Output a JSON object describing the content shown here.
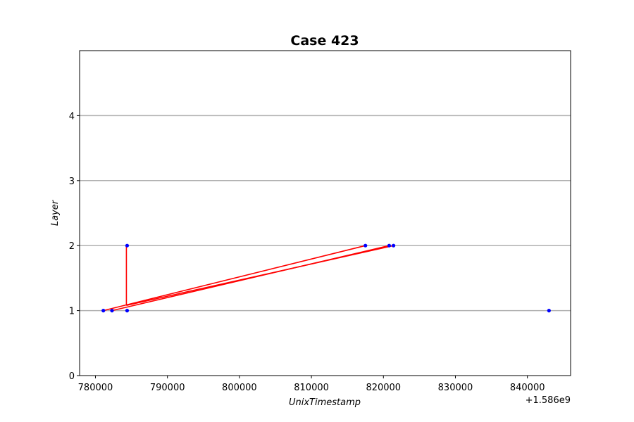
{
  "chart_data": {
    "type": "scatter",
    "title": "Case 423",
    "xlabel": "UnixTimestamp",
    "ylabel": "Layer",
    "x_offset_label": "+1.586e9",
    "xlim": [
      777800,
      846000
    ],
    "ylim": [
      0,
      5
    ],
    "x_ticks": [
      780000,
      790000,
      800000,
      810000,
      820000,
      830000,
      840000
    ],
    "x_tick_labels": [
      "780000",
      "790000",
      "800000",
      "810000",
      "820000",
      "830000",
      "840000"
    ],
    "y_ticks": [
      0,
      1,
      2,
      3,
      4
    ],
    "y_tick_labels": [
      "0",
      "1",
      "2",
      "3",
      "4"
    ],
    "y_grid": [
      1,
      2,
      3,
      4
    ],
    "grid": "y-major",
    "points": {
      "color": "#0000ff",
      "x": [
        781100,
        782300,
        784400,
        784400,
        817500,
        820800,
        821400,
        843000
      ],
      "y": [
        1,
        1,
        1,
        2,
        2,
        2,
        2,
        1
      ]
    },
    "segments": {
      "color": "#ff0000",
      "lines": [
        {
          "x": [
            781100,
            817500
          ],
          "y": [
            1,
            2
          ]
        },
        {
          "x": [
            782300,
            820800
          ],
          "y": [
            1,
            2
          ]
        },
        {
          "x": [
            784300,
            784300
          ],
          "y": [
            1.08,
            2
          ]
        },
        {
          "x": [
            784300,
            821400
          ],
          "y": [
            1.08,
            2
          ]
        }
      ]
    }
  }
}
